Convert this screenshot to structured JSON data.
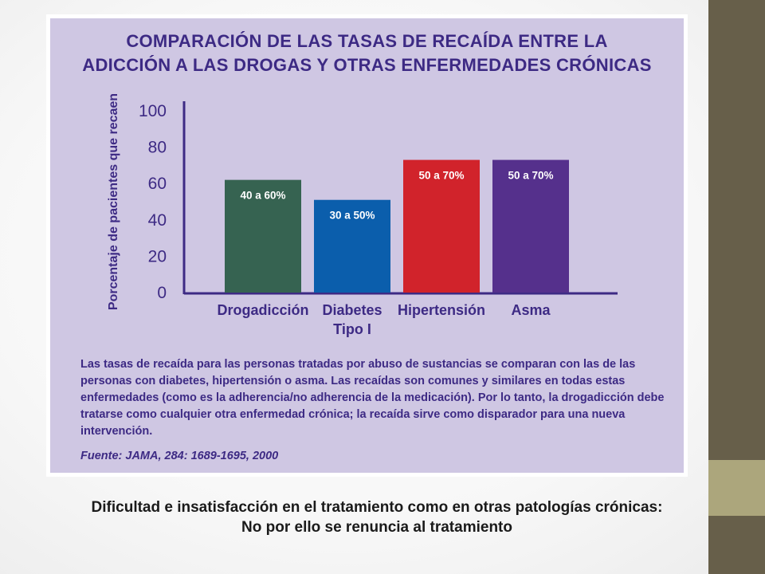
{
  "chart_data": {
    "type": "bar",
    "title": "COMPARACIÓN DE LAS TASAS DE RECAÍDA ENTRE LA ADICCIÓN A LAS DROGAS Y OTRAS ENFERMEDADES CRÓNICAS",
    "title_lines": [
      "COMPARACIÓN DE LAS TASAS DE RECAÍDA ENTRE LA",
      "ADICCIÓN A LAS DROGAS Y OTRAS ENFERMEDADES CRÓNICAS"
    ],
    "ylabel": "Porcentaje de pacientes que recaen",
    "xlabel": "",
    "ylim": [
      0,
      100
    ],
    "yticks": [
      0,
      20,
      40,
      60,
      80,
      100
    ],
    "grid": false,
    "categories": [
      {
        "lines": [
          "Drogadicción"
        ]
      },
      {
        "lines": [
          "Diabetes",
          "Tipo I"
        ]
      },
      {
        "lines": [
          "Hipertensión"
        ]
      },
      {
        "lines": [
          "Asma"
        ]
      }
    ],
    "values": [
      62,
      51,
      73,
      73
    ],
    "ranges": [
      [
        40,
        60
      ],
      [
        30,
        50
      ],
      [
        50,
        70
      ],
      [
        50,
        70
      ]
    ],
    "data_labels": [
      "40 a 60%",
      "30 a 50%",
      "50 a 70%",
      "50 a 70%"
    ],
    "colors": [
      "#366351",
      "#0b5eac",
      "#d1232b",
      "#55308c"
    ]
  },
  "caption": {
    "text": "Las tasas de recaída para las personas tratadas por abuso de sustancias se comparan con las de las personas con diabetes, hipertensión o asma. Las recaídas son comunes y similares en todas estas enfermedades (como es la adherencia/no adherencia de la medicación). Por lo tanto, la drogadicción debe tratarse como cualquier otra enfermedad crónica; la recaída sirve como disparador para una nueva intervención.",
    "source": "Fuente: JAMA, 284: 1689-1695, 2000"
  },
  "footer": {
    "line1": "Dificultad e insatisfacción en el tratamiento como en otras patologías crónicas:",
    "line2": "No por ello se renuncia al tratamiento"
  },
  "colors": {
    "panel_background": "#cfc7e3",
    "text_purple": "#3d2a84",
    "side_bar": "#675f4a",
    "side_accent": "#aca67c"
  }
}
